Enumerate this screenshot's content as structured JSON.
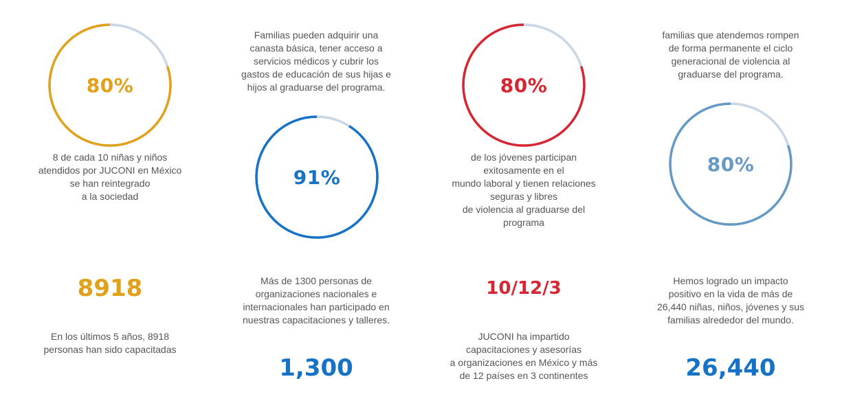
{
  "colors": {
    "gold": "#E0A11B",
    "blue": "#1672C4",
    "red": "#D62632",
    "steel": "#6699C4",
    "track": "#C9D6E3"
  },
  "stats": [
    {
      "percent_label": "80%",
      "percent_value": 80,
      "ring_color": "#E0A11B",
      "ring_text": "8 de cada 10 niñas y niños\natendidos por JUCONI en México\nse han reintegrado\na la sociedad",
      "big_number": "8918",
      "big_color": "#E0A11B",
      "big_text": "En los últimos 5 años, 8918\npersonas han sido capacitadas"
    },
    {
      "percent_label": "91%",
      "percent_value": 91,
      "ring_color": "#1672C4",
      "ring_text": "Familias pueden adquirir una\ncanasta básica, tener acceso a\nservicios médicos y cubrir los\ngastos de educación de sus hijas e\nhijos al graduarse del programa.",
      "big_number": "1,300",
      "big_color": "#1672C4",
      "big_text": "Más de 1300 personas de\norganizaciones nacionales e\ninternacionales han participado en\nnuestras capacitaciones y talleres."
    },
    {
      "percent_label": "80%",
      "percent_value": 80,
      "ring_color": "#D62632",
      "ring_text": "de los jóvenes participan\nexitosamente en el\nmundo laboral y tienen relaciones\nseguras y libres\nde violencia al graduarse del\nprograma",
      "big_number": "10/12/3",
      "big_color": "#D62632",
      "big_text": "JUCONI ha impartido\ncapacitaciones y asesorías\na organizaciones en México y más\nde 12 países en 3 continentes"
    },
    {
      "percent_label": "80%",
      "percent_value": 80,
      "ring_color": "#6699C4",
      "ring_text": "familias que atendemos rompen\nde forma permanente el ciclo\ngeneracional de violencia al\ngraduarse del programa.",
      "big_number": "26,440",
      "big_color": "#1672C4",
      "big_text": "Hemos logrado un impacto\npositivo en la vida de más de\n26,440 niñas, niños, jóvenes y sus\nfamilias alrededor del mundo."
    }
  ]
}
